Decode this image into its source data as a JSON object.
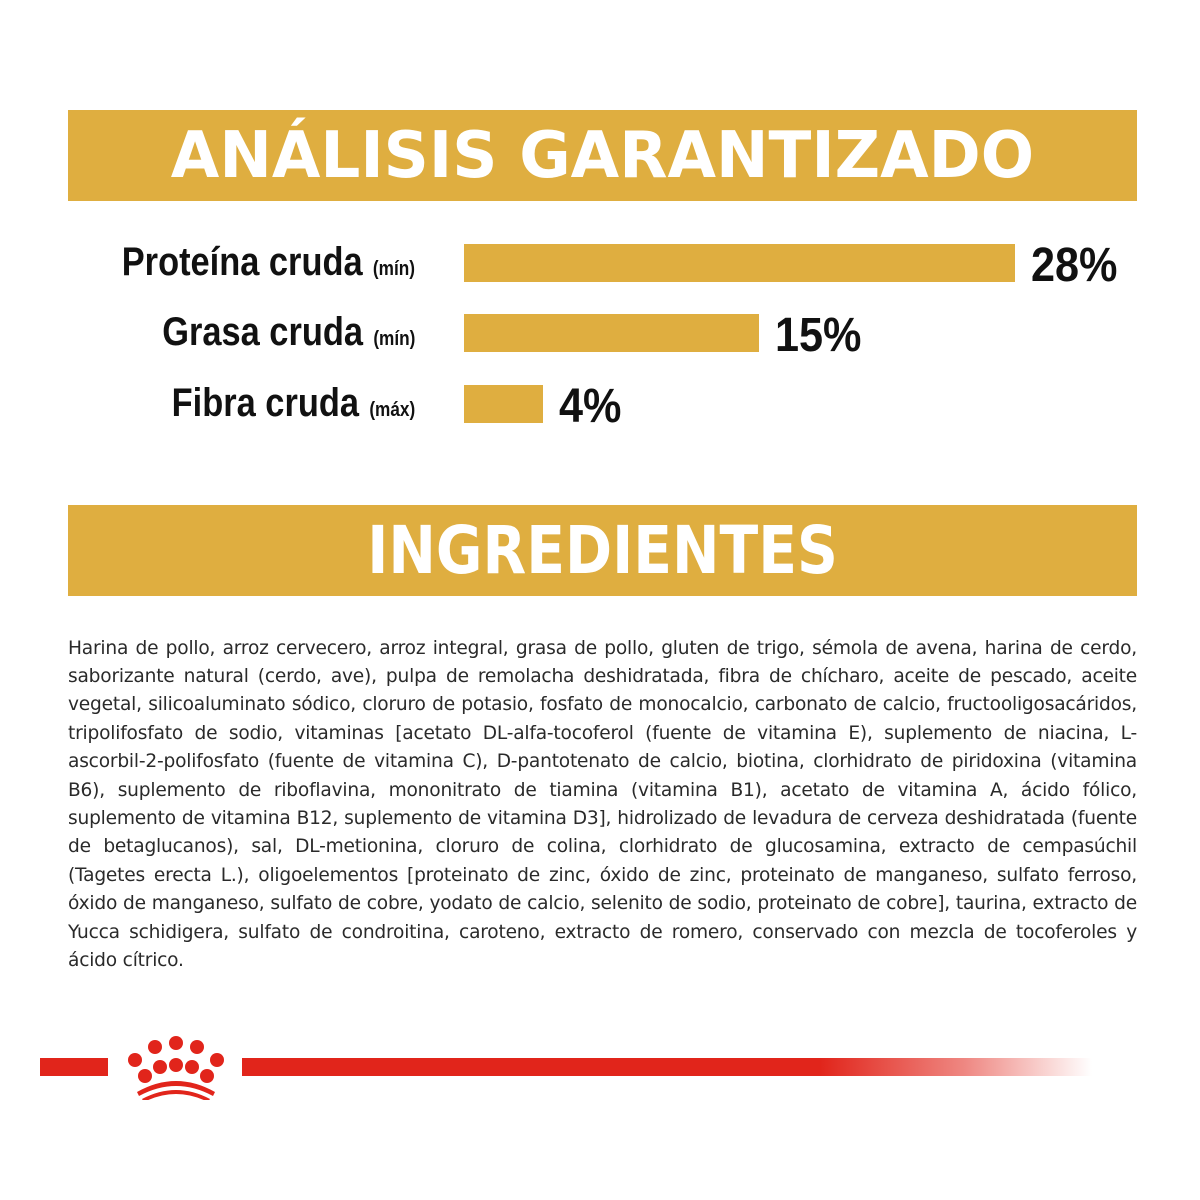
{
  "colors": {
    "gold": "#DFAE40",
    "brand_red": "#E1251B",
    "text": "#1a1a1a",
    "background": "#ffffff"
  },
  "analysis": {
    "title": "ANÁLISIS GARANTIZADO"
  },
  "chart_data": {
    "type": "bar",
    "orientation": "horizontal",
    "title": "ANÁLISIS GARANTIZADO",
    "categories": [
      "Proteína cruda",
      "Grasa cruda",
      "Fibra cruda"
    ],
    "qualifiers": [
      "(mín)",
      "(mín)",
      "(máx)"
    ],
    "values": [
      28,
      15,
      4
    ],
    "value_labels": [
      "28%",
      "15%",
      "4%"
    ],
    "unit": "%",
    "xlabel": "",
    "ylabel": "",
    "grid": false,
    "legend": "none",
    "bar_color": "#DFAE40"
  },
  "rows": [
    {
      "label": "Proteína cruda",
      "qualifier": "(mín)",
      "value_label": "28%",
      "value": 28
    },
    {
      "label": "Grasa cruda",
      "qualifier": "(mín)",
      "value_label": "15%",
      "value": 15
    },
    {
      "label": "Fibra cruda",
      "qualifier": "(máx)",
      "value_label": "4%",
      "value": 4
    }
  ],
  "ingredients": {
    "title": "INGREDIENTES",
    "text": "Harina de pollo, arroz cervecero, arroz integral, grasa de pollo, gluten de trigo, sémola de avena, harina de cerdo, saborizante natural (cerdo, ave), pulpa de remolacha deshidratada, fibra de chícharo, aceite de pescado, aceite vegetal, silicoaluminato sódico, cloruro de potasio, fosfato de monocalcio, carbonato de calcio, fructooligosacáridos, tripolifosfato de sodio, vitaminas [acetato DL-alfa-tocoferol (fuente de vitamina E), suplemento de niacina, L-ascorbil-2-polifosfato (fuente de vitamina C), D-pantotenato de calcio, biotina, clorhidrato de piridoxina (vitamina B6), suplemento de riboflavina, mononitrato de tiamina (vitamina B1), acetato de vitamina A, ácido fólico, suplemento de vitamina B12, suplemento de vitamina D3], hidrolizado de levadura de cerveza deshidratada (fuente de betaglucanos), sal, DL-metionina, cloruro de colina, clorhidrato de glucosamina, extracto de cempasúchil (Tagetes erecta L.), oligoelementos [proteinato de zinc, óxido de zinc, proteinato de manganeso, sulfato ferroso, óxido de manganeso, sulfato de cobre, yodato de calcio, selenito de sodio, proteinato de cobre], taurina, extracto de Yucca schidigera, sulfato de condroitina, caroteno, extracto de romero, conservado con mezcla de tocoferoles y ácido cítrico."
  },
  "footer": {
    "logo_icon": "crown-icon"
  }
}
